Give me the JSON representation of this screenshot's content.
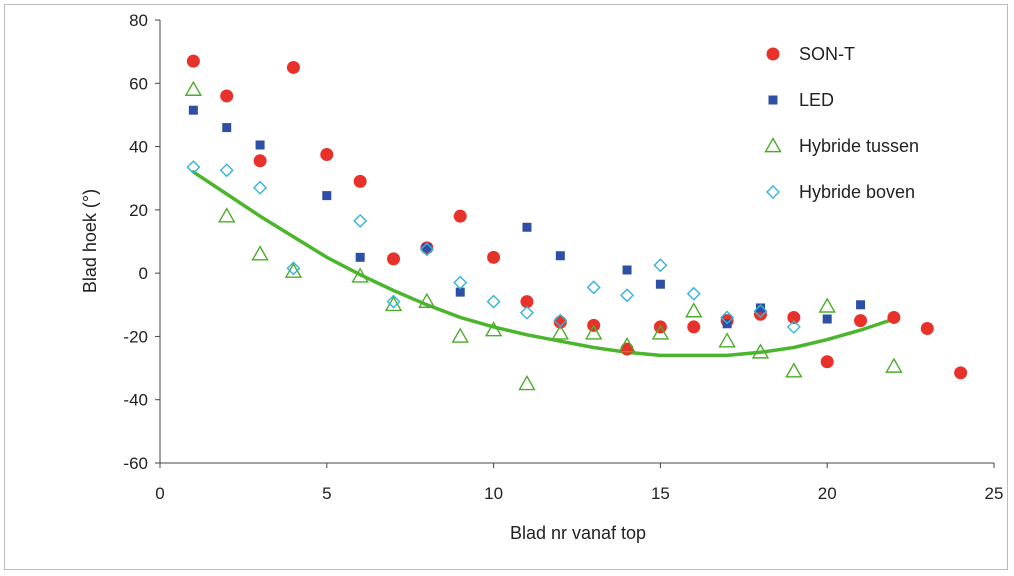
{
  "chart_data": {
    "type": "scatter",
    "title": "",
    "xlabel": "Blad nr vanaf top",
    "ylabel": "Blad hoek (°)",
    "xlim": [
      0,
      25
    ],
    "ylim": [
      -60,
      80
    ],
    "x_ticks": [
      "0",
      "5",
      "10",
      "15",
      "20",
      "25"
    ],
    "y_ticks": [
      "80",
      "60",
      "40",
      "20",
      "0",
      "-20",
      "-40",
      "-60"
    ],
    "grid": false,
    "legend_position": "top-right",
    "series": [
      {
        "name": "SON-T",
        "marker": "circle",
        "color": "#e8312a",
        "points": [
          [
            1,
            67
          ],
          [
            2,
            56
          ],
          [
            3,
            35.5
          ],
          [
            4,
            65
          ],
          [
            5,
            37.5
          ],
          [
            6,
            29
          ],
          [
            7,
            4.5
          ],
          [
            8,
            8
          ],
          [
            9,
            18
          ],
          [
            10,
            5
          ],
          [
            11,
            -9
          ],
          [
            12,
            -15.5
          ],
          [
            13,
            -16.5
          ],
          [
            14,
            -24
          ],
          [
            15,
            -17
          ],
          [
            16,
            -17
          ],
          [
            17,
            -15
          ],
          [
            18,
            -13
          ],
          [
            19,
            -14
          ],
          [
            20,
            -28
          ],
          [
            21,
            -15
          ],
          [
            22,
            -14
          ],
          [
            23,
            -17.5
          ],
          [
            24,
            -31.5
          ]
        ]
      },
      {
        "name": "LED",
        "marker": "square",
        "color": "#2e4fa3",
        "points": [
          [
            1,
            51.5
          ],
          [
            2,
            46
          ],
          [
            3,
            40.5
          ],
          [
            5,
            24.5
          ],
          [
            6,
            5
          ],
          [
            8,
            8
          ],
          [
            9,
            -6
          ],
          [
            11,
            14.5
          ],
          [
            12,
            5.5
          ],
          [
            14,
            1
          ],
          [
            15,
            -3.5
          ],
          [
            17,
            -16
          ],
          [
            18,
            -11
          ],
          [
            20,
            -14.5
          ],
          [
            21,
            -10
          ]
        ]
      },
      {
        "name": "Hybride tussen",
        "marker": "triangle",
        "color": "#4cad2a",
        "points": [
          [
            1,
            58
          ],
          [
            2,
            18
          ],
          [
            3,
            6
          ],
          [
            4,
            0.5
          ],
          [
            6,
            -1
          ],
          [
            7,
            -10
          ],
          [
            8,
            -9
          ],
          [
            9,
            -20
          ],
          [
            10,
            -18
          ],
          [
            11,
            -35
          ],
          [
            12,
            -19
          ],
          [
            13,
            -19
          ],
          [
            14,
            -23
          ],
          [
            15,
            -19
          ],
          [
            16,
            -12
          ],
          [
            17,
            -21.5
          ],
          [
            18,
            -25
          ],
          [
            19,
            -31
          ],
          [
            20,
            -10.5
          ],
          [
            22,
            -29.5
          ]
        ]
      },
      {
        "name": "Hybride boven",
        "marker": "diamond",
        "color": "#33b4d9",
        "points": [
          [
            1,
            33.5
          ],
          [
            2,
            32.5
          ],
          [
            3,
            27
          ],
          [
            4,
            1.5
          ],
          [
            6,
            16.5
          ],
          [
            7,
            -9
          ],
          [
            8,
            7.5
          ],
          [
            9,
            -3
          ],
          [
            10,
            -9
          ],
          [
            11,
            -12.5
          ],
          [
            12,
            -15
          ],
          [
            13,
            -4.5
          ],
          [
            14,
            -7
          ],
          [
            15,
            2.5
          ],
          [
            16,
            -6.5
          ],
          [
            17,
            -14
          ],
          [
            18,
            -12
          ],
          [
            19,
            -17
          ]
        ]
      }
    ],
    "trendline": {
      "color": "#4cb52e",
      "points": [
        [
          1,
          32
        ],
        [
          2,
          25
        ],
        [
          3,
          18
        ],
        [
          4,
          11.5
        ],
        [
          5,
          5
        ],
        [
          6,
          -0.5
        ],
        [
          7,
          -5.5
        ],
        [
          8,
          -10
        ],
        [
          9,
          -14
        ],
        [
          10,
          -17
        ],
        [
          11,
          -19.5
        ],
        [
          12,
          -21.5
        ],
        [
          13,
          -23.5
        ],
        [
          14,
          -25
        ],
        [
          15,
          -26
        ],
        [
          16,
          -26
        ],
        [
          17,
          -26
        ],
        [
          18,
          -25
        ],
        [
          19,
          -23.5
        ],
        [
          20,
          -21
        ],
        [
          21,
          -18
        ],
        [
          22,
          -14.5
        ]
      ]
    }
  }
}
